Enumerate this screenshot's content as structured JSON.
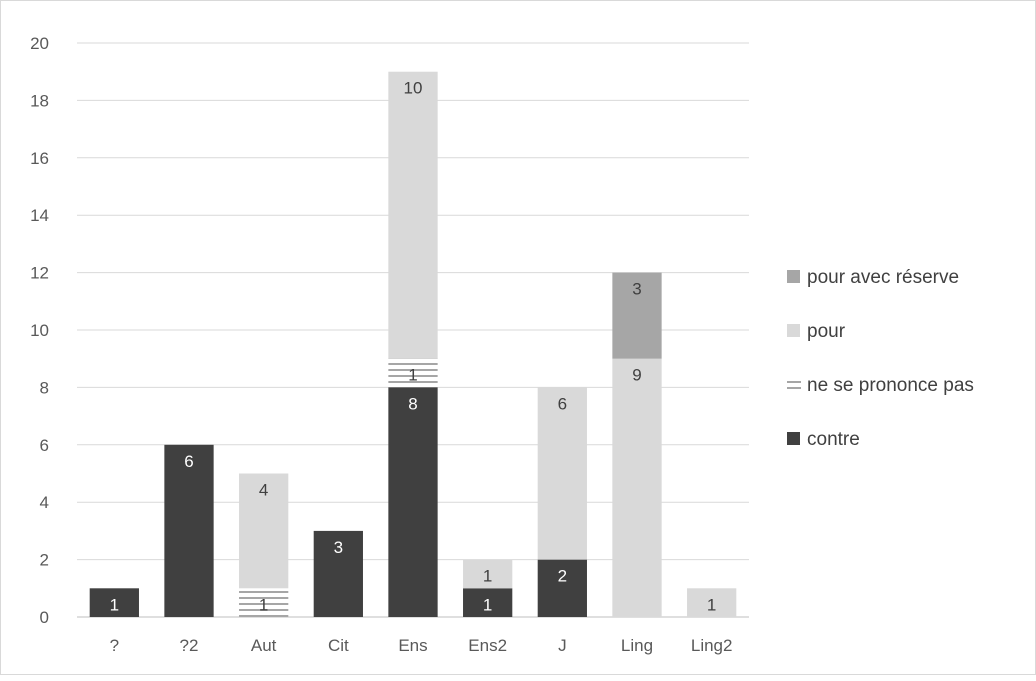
{
  "chart_data": {
    "type": "bar",
    "stacked": true,
    "title": "",
    "xlabel": "",
    "ylabel": "",
    "categories": [
      "?",
      "?2",
      "Aut",
      "Cit",
      "Ens",
      "Ens2",
      "J",
      "Ling",
      "Ling2"
    ],
    "ylim": [
      0,
      20
    ],
    "ytick_step": 2,
    "grid": true,
    "legend_position": "right",
    "series": [
      {
        "name": "contre",
        "values": [
          1,
          6,
          0,
          3,
          8,
          1,
          2,
          0,
          0
        ],
        "color": "#404040",
        "pattern": "solid",
        "label_color": "#ffffff"
      },
      {
        "name": "ne se prononce pas",
        "values": [
          0,
          0,
          1,
          0,
          1,
          0,
          0,
          0,
          0
        ],
        "color": "#a6a6a6",
        "pattern": "horizontal-lines",
        "label_color": "#404040"
      },
      {
        "name": "pour",
        "values": [
          0,
          0,
          4,
          0,
          10,
          1,
          6,
          9,
          1
        ],
        "color": "#d9d9d9",
        "pattern": "solid",
        "label_color": "#404040"
      },
      {
        "name": "pour avec réserve",
        "values": [
          0,
          0,
          0,
          0,
          0,
          0,
          0,
          3,
          0
        ],
        "color": "#a6a6a6",
        "pattern": "solid",
        "label_color": "#404040"
      }
    ],
    "legend_order": [
      3,
      2,
      1,
      0
    ]
  }
}
